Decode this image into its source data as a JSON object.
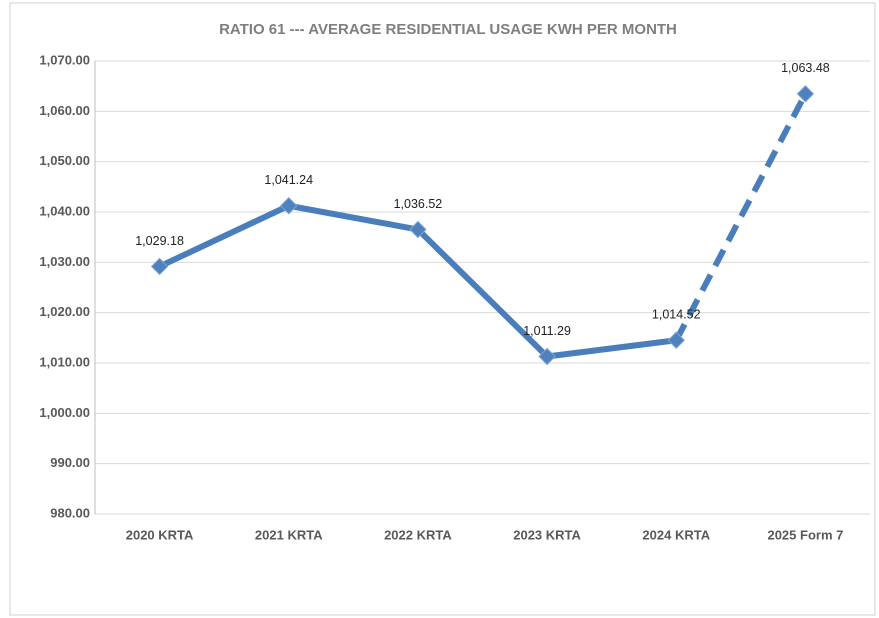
{
  "chart_data": {
    "type": "line",
    "title": "RATIO 61 --- AVERAGE RESIDENTIAL USAGE KWH PER MONTH",
    "categories": [
      "2020 KRTA",
      "2021 KRTA",
      "2022 KRTA",
      "2023 KRTA",
      "2024 KRTA",
      "2025 Form 7"
    ],
    "values": [
      1029.18,
      1041.24,
      1036.52,
      1011.29,
      1014.52,
      1063.48
    ],
    "value_labels": [
      "1,029.18",
      "1,041.24",
      "1,036.52",
      "1,011.29",
      "1,014.52",
      "1,063.48"
    ],
    "color": "#4a7ebb",
    "segment_styles": [
      "solid",
      "solid",
      "solid",
      "solid",
      "dashed"
    ],
    "ylim": [
      980,
      1070
    ],
    "yticks": [
      {
        "value": 980,
        "label": "980.00"
      },
      {
        "value": 990,
        "label": "990.00"
      },
      {
        "value": 1000,
        "label": "1,000.00"
      },
      {
        "value": 1010,
        "label": "1,010.00"
      },
      {
        "value": 1020,
        "label": "1,020.00"
      },
      {
        "value": 1030,
        "label": "1,030.00"
      },
      {
        "value": 1040,
        "label": "1,040.00"
      },
      {
        "value": 1050,
        "label": "1,050.00"
      },
      {
        "value": 1060,
        "label": "1,060.00"
      },
      {
        "value": 1070,
        "label": "1,070.00"
      }
    ],
    "grid": true
  }
}
